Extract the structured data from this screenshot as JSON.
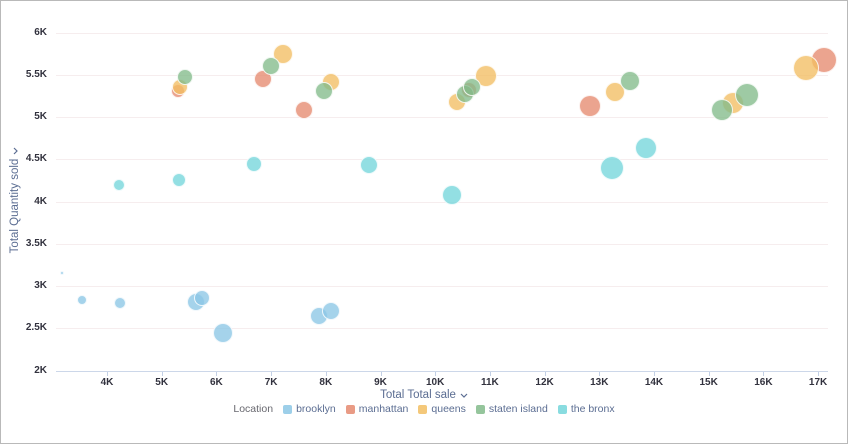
{
  "chart_data": {
    "type": "scatter",
    "title": "",
    "xlabel": "Total Total sale",
    "ylabel": "Total Quantity sold",
    "legend_title": "Location",
    "legend_position": "bottom",
    "grid": "horizontal-only",
    "xlim": [
      3.05,
      17.2
    ],
    "ylim": [
      2,
      6
    ],
    "x_ticks": [
      {
        "v": 4,
        "label": "4K"
      },
      {
        "v": 5,
        "label": "5K"
      },
      {
        "v": 6,
        "label": "6K"
      },
      {
        "v": 7,
        "label": "7K"
      },
      {
        "v": 8,
        "label": "8K"
      },
      {
        "v": 9,
        "label": "9K"
      },
      {
        "v": 10,
        "label": "10K"
      },
      {
        "v": 11,
        "label": "11K"
      },
      {
        "v": 12,
        "label": "12K"
      },
      {
        "v": 13,
        "label": "13K"
      },
      {
        "v": 14,
        "label": "14K"
      },
      {
        "v": 15,
        "label": "15K"
      },
      {
        "v": 16,
        "label": "16K"
      },
      {
        "v": 17,
        "label": "17K"
      }
    ],
    "y_ticks": [
      {
        "v": 2,
        "label": "2K"
      },
      {
        "v": 2.5,
        "label": "2.5K"
      },
      {
        "v": 3,
        "label": "3K"
      },
      {
        "v": 3.5,
        "label": "3.5K"
      },
      {
        "v": 4,
        "label": "4K"
      },
      {
        "v": 4.5,
        "label": "4.5K"
      },
      {
        "v": 5,
        "label": "5K"
      },
      {
        "v": 5.5,
        "label": "5.5K"
      },
      {
        "v": 6,
        "label": "6K"
      }
    ],
    "series": [
      {
        "name": "brooklyn",
        "color": "#8CC7E5",
        "points": [
          [
            3.17,
            3.15,
            2
          ],
          [
            3.55,
            2.84,
            5
          ],
          [
            4.23,
            2.8,
            6
          ],
          [
            5.63,
            2.81,
            9
          ],
          [
            5.73,
            2.86,
            8
          ],
          [
            6.12,
            2.44,
            10
          ],
          [
            7.88,
            2.64,
            9
          ],
          [
            8.1,
            2.71,
            9
          ]
        ]
      },
      {
        "name": "manhattan",
        "color": "#E58A70",
        "points": [
          [
            5.3,
            5.31,
            7
          ],
          [
            6.85,
            5.45,
            9
          ],
          [
            7.61,
            5.08,
            9
          ],
          [
            10.62,
            5.32,
            8
          ],
          [
            12.83,
            5.13,
            11
          ],
          [
            17.1,
            5.68,
            13
          ]
        ]
      },
      {
        "name": "queens",
        "color": "#F2BE63",
        "points": [
          [
            5.33,
            5.36,
            8
          ],
          [
            7.21,
            5.75,
            10
          ],
          [
            8.1,
            5.42,
            9
          ],
          [
            10.4,
            5.18,
            9
          ],
          [
            10.93,
            5.48,
            11
          ],
          [
            13.28,
            5.3,
            10
          ],
          [
            15.45,
            5.17,
            11
          ],
          [
            16.78,
            5.58,
            13
          ]
        ]
      },
      {
        "name": "staten island",
        "color": "#83BB8B",
        "points": [
          [
            5.42,
            5.47,
            8
          ],
          [
            7.0,
            5.6,
            9
          ],
          [
            7.96,
            5.31,
            9
          ],
          [
            10.55,
            5.27,
            9
          ],
          [
            10.68,
            5.36,
            9
          ],
          [
            13.56,
            5.43,
            10
          ],
          [
            15.25,
            5.08,
            11
          ],
          [
            15.7,
            5.26,
            12
          ]
        ]
      },
      {
        "name": "the bronx",
        "color": "#74D6DB",
        "points": [
          [
            4.22,
            4.19,
            6
          ],
          [
            5.32,
            4.25,
            7
          ],
          [
            6.68,
            4.44,
            8
          ],
          [
            8.79,
            4.43,
            9
          ],
          [
            10.3,
            4.08,
            10
          ],
          [
            13.23,
            4.4,
            12
          ],
          [
            13.85,
            4.63,
            11
          ]
        ]
      }
    ]
  }
}
